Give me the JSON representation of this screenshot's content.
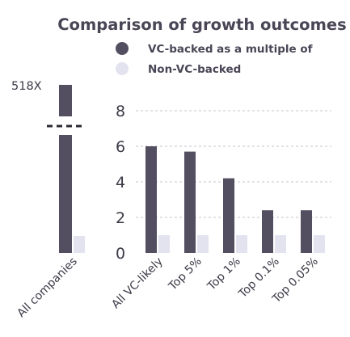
{
  "chart_data": {
    "type": "bar",
    "title": "Comparison of growth outcomes",
    "legend": [
      {
        "name": "VC-backed as a multiple of",
        "color": "#534f61"
      },
      {
        "name": "Non-VC-backed",
        "color": "#e2e3ef"
      }
    ],
    "legend_position": "top-right",
    "grid": true,
    "ylim": [
      0,
      8
    ],
    "yticks": [
      "0",
      "2",
      "4",
      "6",
      "8"
    ],
    "broken_bar": {
      "category": "All companies",
      "vc_value": 518,
      "vc_label": "518X",
      "non_vc_value": 1
    },
    "categories": [
      "All VC-likely",
      "Top 5%",
      "Top 1%",
      "Top 0.1%",
      "Top 0.05%"
    ],
    "series": [
      {
        "name": "VC-backed as a multiple of",
        "values": [
          6.0,
          5.7,
          4.2,
          2.4,
          2.4
        ]
      },
      {
        "name": "Non-VC-backed",
        "values": [
          1,
          1,
          1,
          1,
          1
        ]
      }
    ]
  }
}
